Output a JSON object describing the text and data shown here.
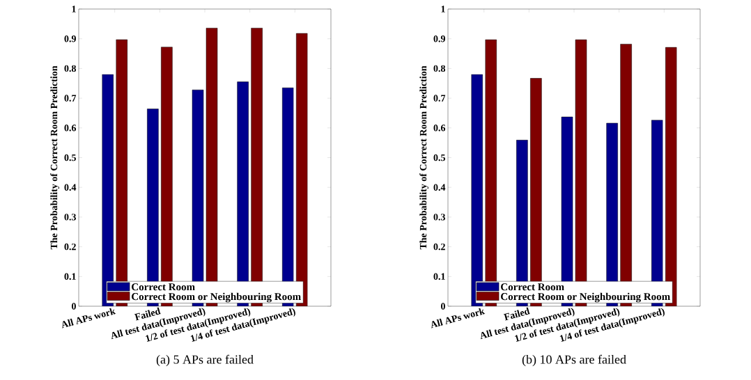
{
  "chart_data": [
    {
      "type": "bar",
      "ylabel": "The Probability of Correct Room Prediction",
      "categories": [
        "All APs work",
        "Failed",
        "All test data(Improved)",
        "1/2 of test data(Improved)",
        "1/4 of test data(Improved)"
      ],
      "series": [
        {
          "name": "Correct Room",
          "color": "#00008f",
          "values": [
            0.78,
            0.664,
            0.728,
            0.755,
            0.735
          ]
        },
        {
          "name": "Correct Room or Neighbouring Room",
          "color": "#800000",
          "values": [
            0.897,
            0.872,
            0.936,
            0.936,
            0.918
          ]
        }
      ],
      "ylim": [
        0,
        1
      ],
      "yticks": [
        0,
        0.1,
        0.2,
        0.3,
        0.4,
        0.5,
        0.6,
        0.7,
        0.8,
        0.9,
        1
      ],
      "legend": "bottom",
      "annotations": [
        "(a) 5 APs are failed"
      ]
    },
    {
      "type": "bar",
      "ylabel": "The Probability of Correct Room Prediction",
      "categories": [
        "All APs work",
        "Failed",
        "All test data(Improved)",
        "1/2 of test data(Improved)",
        "1/4 of test data(Improved)"
      ],
      "series": [
        {
          "name": "Correct Room",
          "color": "#00008f",
          "values": [
            0.78,
            0.559,
            0.637,
            0.616,
            0.626
          ]
        },
        {
          "name": "Correct Room or Neighbouring Room",
          "color": "#800000",
          "values": [
            0.897,
            0.767,
            0.897,
            0.882,
            0.871
          ]
        }
      ],
      "ylim": [
        0,
        1
      ],
      "yticks": [
        0,
        0.1,
        0.2,
        0.3,
        0.4,
        0.5,
        0.6,
        0.7,
        0.8,
        0.9,
        1
      ],
      "legend": "bottom",
      "annotations": [
        "(b) 10 APs are failed"
      ]
    }
  ]
}
